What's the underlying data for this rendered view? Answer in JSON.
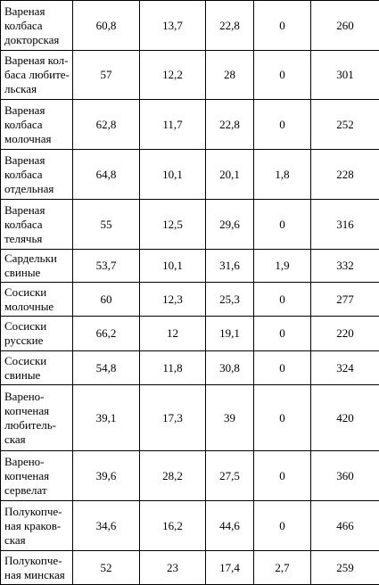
{
  "table": {
    "rows": [
      {
        "name": "Вареная\nколбаса\nдокторская",
        "values": [
          "60,8",
          "13,7",
          "22,8",
          "0",
          "260"
        ]
      },
      {
        "name": "Вареная кол-\nбаса любите-\nльская",
        "values": [
          "57",
          "12,2",
          "28",
          "0",
          "301"
        ]
      },
      {
        "name": "Вареная\nколбаса\nмолочная",
        "values": [
          "62,8",
          "11,7",
          "22,8",
          "0",
          "252"
        ]
      },
      {
        "name": "Вареная\nколбаса\nотдельная",
        "values": [
          "64,8",
          "10,1",
          "20,1",
          "1,8",
          "228"
        ]
      },
      {
        "name": "Вареная\nколбаса\nтелячья",
        "values": [
          "55",
          "12,5",
          "29,6",
          "0",
          "316"
        ]
      },
      {
        "name": "Сардельки\nсвиные",
        "values": [
          "53,7",
          "10,1",
          "31,6",
          "1,9",
          "332"
        ]
      },
      {
        "name": "Сосиски\nмолочные",
        "values": [
          "60",
          "12,3",
          "25,3",
          "0",
          "277"
        ]
      },
      {
        "name": "Сосиски\nрусские",
        "values": [
          "66,2",
          "12",
          "19,1",
          "0",
          "220"
        ]
      },
      {
        "name": "Сосиски\nсвиные",
        "values": [
          "54,8",
          "11,8",
          "30,8",
          "0",
          "324"
        ]
      },
      {
        "name": "Варено-\nкопченая\nлюбитель-\nская",
        "values": [
          "39,1",
          "17,3",
          "39",
          "0",
          "420"
        ]
      },
      {
        "name": "Варено-\nкопченая\nсервелат",
        "values": [
          "39,6",
          "28,2",
          "27,5",
          "0",
          "360"
        ]
      },
      {
        "name": "Полукопче-\nная краков-\nская",
        "values": [
          "34,6",
          "16,2",
          "44,6",
          "0",
          "466"
        ]
      },
      {
        "name": "Полукопче-\nная минская",
        "values": [
          "52",
          "23",
          "17,4",
          "2,7",
          "259"
        ]
      }
    ]
  }
}
